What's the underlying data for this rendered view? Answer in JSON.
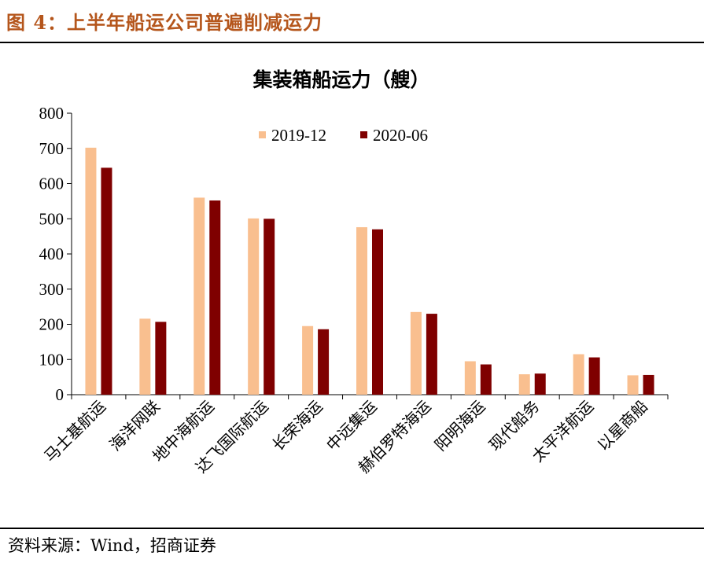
{
  "figure": {
    "title": "图 4：上半年船运公司普遍削减运力",
    "source": "资料来源：Wind，招商证券"
  },
  "colors": {
    "series1": "#f9bf8f",
    "series2": "#7f0000"
  },
  "chart_data": {
    "type": "bar",
    "title": "集装箱船运力（艘）",
    "xlabel": "",
    "ylabel": "",
    "ylim": [
      0,
      800
    ],
    "yticks": [
      "0",
      "100",
      "200",
      "300",
      "400",
      "500",
      "600",
      "700",
      "800"
    ],
    "grid": false,
    "legend": "top-center",
    "categories": [
      "马士基航运",
      "海洋网联",
      "地中海航运",
      "达飞国际航运",
      "长荣海运",
      "中远集运",
      "赫伯罗特海运",
      "阳明海运",
      "现代船务",
      "太平洋航运",
      "以星商船"
    ],
    "series": [
      {
        "name": "2019-12",
        "values": [
          702,
          216,
          560,
          501,
          195,
          476,
          235,
          95,
          58,
          115,
          55
        ]
      },
      {
        "name": "2020-06",
        "values": [
          645,
          207,
          552,
          500,
          186,
          470,
          230,
          86,
          60,
          106,
          56
        ]
      }
    ]
  }
}
